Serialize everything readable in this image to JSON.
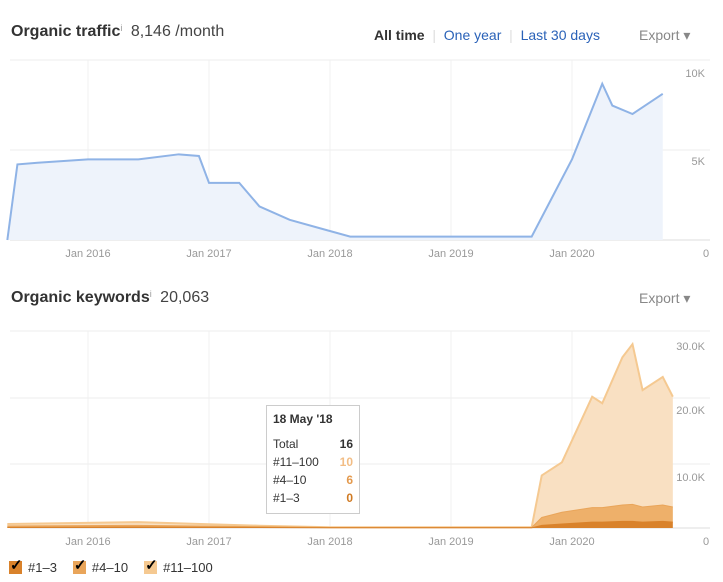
{
  "traffic": {
    "title": "Organic traffic",
    "info": "i",
    "value": "8,146 /month",
    "ranges": [
      "All time",
      "One year",
      "Last 30 days"
    ],
    "export": "Export ▾"
  },
  "keywords": {
    "title": "Organic keywords",
    "info": "i",
    "value": "20,063",
    "export": "Export ▾"
  },
  "tooltip": {
    "date": "18 May '18",
    "rows": [
      {
        "label": "Total",
        "value": "16"
      },
      {
        "label": "#11–100",
        "value": "10"
      },
      {
        "label": "#4–10",
        "value": "6"
      },
      {
        "label": "#1–3",
        "value": "0"
      }
    ]
  },
  "legend": [
    {
      "label": "#1–3",
      "color": "#d9822b"
    },
    {
      "label": "#4–10",
      "color": "#e9a55a"
    },
    {
      "label": "#11–100",
      "color": "#f5c991"
    }
  ],
  "chart_data": [
    {
      "type": "area",
      "x_ticks": [
        "Jan 2016",
        "Jan 2017",
        "Jan 2018",
        "Jan 2019",
        "Jan 2020"
      ],
      "y_ticks": [
        "10K",
        "5K",
        "0"
      ],
      "ylim": [
        0,
        10000
      ],
      "color": "#8fb3e6",
      "x": [
        "2015-05",
        "2015-06",
        "2015-08",
        "2016-01",
        "2016-06",
        "2016-10",
        "2016-12",
        "2017-01",
        "2017-04",
        "2017-06",
        "2017-09",
        "2017-12",
        "2018-03",
        "2019-01",
        "2019-09",
        "2019-11",
        "2020-01",
        "2020-04",
        "2020-05",
        "2020-07",
        "2020-10"
      ],
      "values": [
        0,
        4500,
        4600,
        4800,
        4800,
        5100,
        5000,
        3400,
        3400,
        2000,
        1200,
        700,
        200,
        200,
        200,
        2500,
        4800,
        9300,
        8000,
        7500,
        8700
      ]
    },
    {
      "type": "area",
      "stacked": true,
      "x_ticks": [
        "Jan 2016",
        "Jan 2017",
        "Jan 2018",
        "Jan 2019",
        "Jan 2020"
      ],
      "y_ticks": [
        "30.0K",
        "20.0K",
        "10.0K",
        "0"
      ],
      "ylim": [
        0,
        30000
      ],
      "x": [
        "2015-05",
        "2016-06",
        "2017-06",
        "2018-01",
        "2019-09",
        "2019-10",
        "2019-12",
        "2020-03",
        "2020-04",
        "2020-06",
        "2020-07",
        "2020-08",
        "2020-10",
        "2020-11"
      ],
      "series": [
        {
          "name": "#1–3",
          "values": [
            100,
            150,
            80,
            30,
            30,
            400,
            600,
            900,
            900,
            1000,
            1000,
            900,
            1000,
            900
          ]
        },
        {
          "name": "#4–10",
          "values": [
            200,
            250,
            120,
            40,
            40,
            1200,
            1800,
            2200,
            2200,
            2500,
            2600,
            2300,
            2500,
            2300
          ]
        },
        {
          "name": "#11–100",
          "values": [
            300,
            500,
            150,
            50,
            50,
            6400,
            7600,
            16900,
            15900,
            22500,
            24400,
            17800,
            19500,
            16800
          ]
        }
      ]
    }
  ]
}
